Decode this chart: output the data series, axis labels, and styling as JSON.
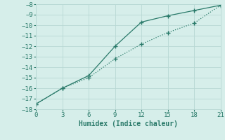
{
  "line1_x": [
    0,
    3,
    6,
    9,
    12,
    15,
    18,
    21
  ],
  "line1_y": [
    -17.5,
    -16.0,
    -14.8,
    -12.0,
    -9.7,
    -9.1,
    -8.6,
    -8.1
  ],
  "line2_x": [
    0,
    3,
    6,
    9,
    12,
    15,
    18,
    21
  ],
  "line2_y": [
    -17.5,
    -16.0,
    -15.0,
    -13.2,
    -11.8,
    -10.7,
    -9.8,
    -8.1
  ],
  "color": "#2a7a6a",
  "bg_color": "#d6eeea",
  "grid_color": "#b8d8d4",
  "xlabel": "Humidex (Indice chaleur)",
  "xlim": [
    0,
    21
  ],
  "ylim": [
    -18,
    -8
  ],
  "xticks": [
    0,
    3,
    6,
    9,
    12,
    15,
    18,
    21
  ],
  "yticks": [
    -18,
    -17,
    -16,
    -15,
    -14,
    -13,
    -12,
    -11,
    -10,
    -9,
    -8
  ],
  "xlabel_fontsize": 7,
  "tick_fontsize": 6.5
}
